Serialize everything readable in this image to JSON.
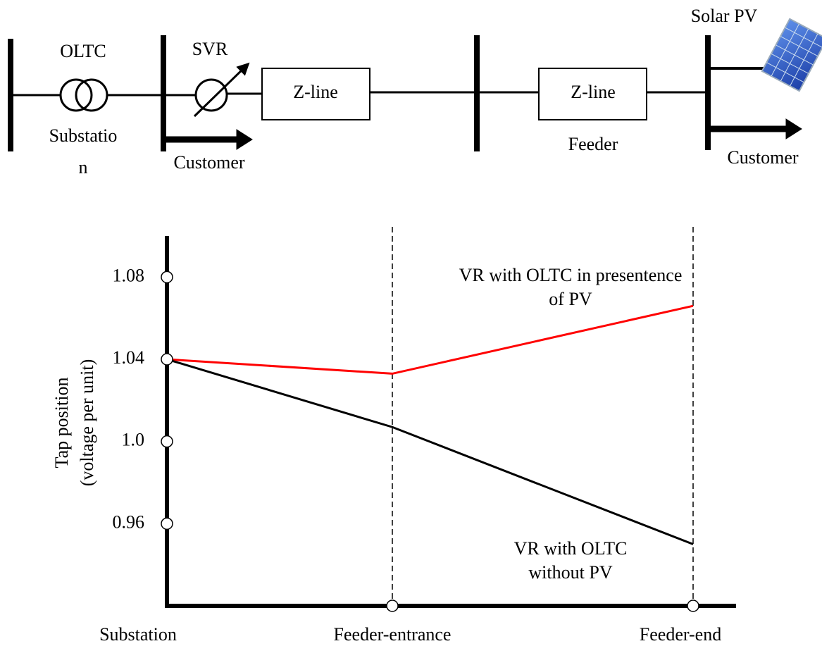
{
  "diagram": {
    "oltc": "OLTC",
    "svr": "SVR",
    "zline_1": "Z-line",
    "zline_2": "Z-line",
    "solar_pv": "Solar PV",
    "substation": [
      "Substatio",
      "n"
    ],
    "customer_1": "Customer",
    "feeder": "Feeder",
    "customer_2": "Customer"
  },
  "chart_data": {
    "type": "line",
    "categories": [
      "Substation",
      "Feeder-entrance",
      "Feeder-end"
    ],
    "ylabel": [
      "Tap position",
      "(voltage per unit)"
    ],
    "ylim": [
      0.92,
      1.1
    ],
    "yticks": [
      0.96,
      {
        "value": 1,
        "label": "1.0"
      },
      1.04,
      1.08
    ],
    "series": [
      {
        "name": "VR with OLTC in presentence of PV",
        "color": "#ff0000",
        "values": [
          1.04,
          1.033,
          1.066
        ]
      },
      {
        "name": "VR with OLTC without PV",
        "color": "#000000",
        "values": [
          1.04,
          1.007,
          0.95
        ]
      }
    ]
  }
}
